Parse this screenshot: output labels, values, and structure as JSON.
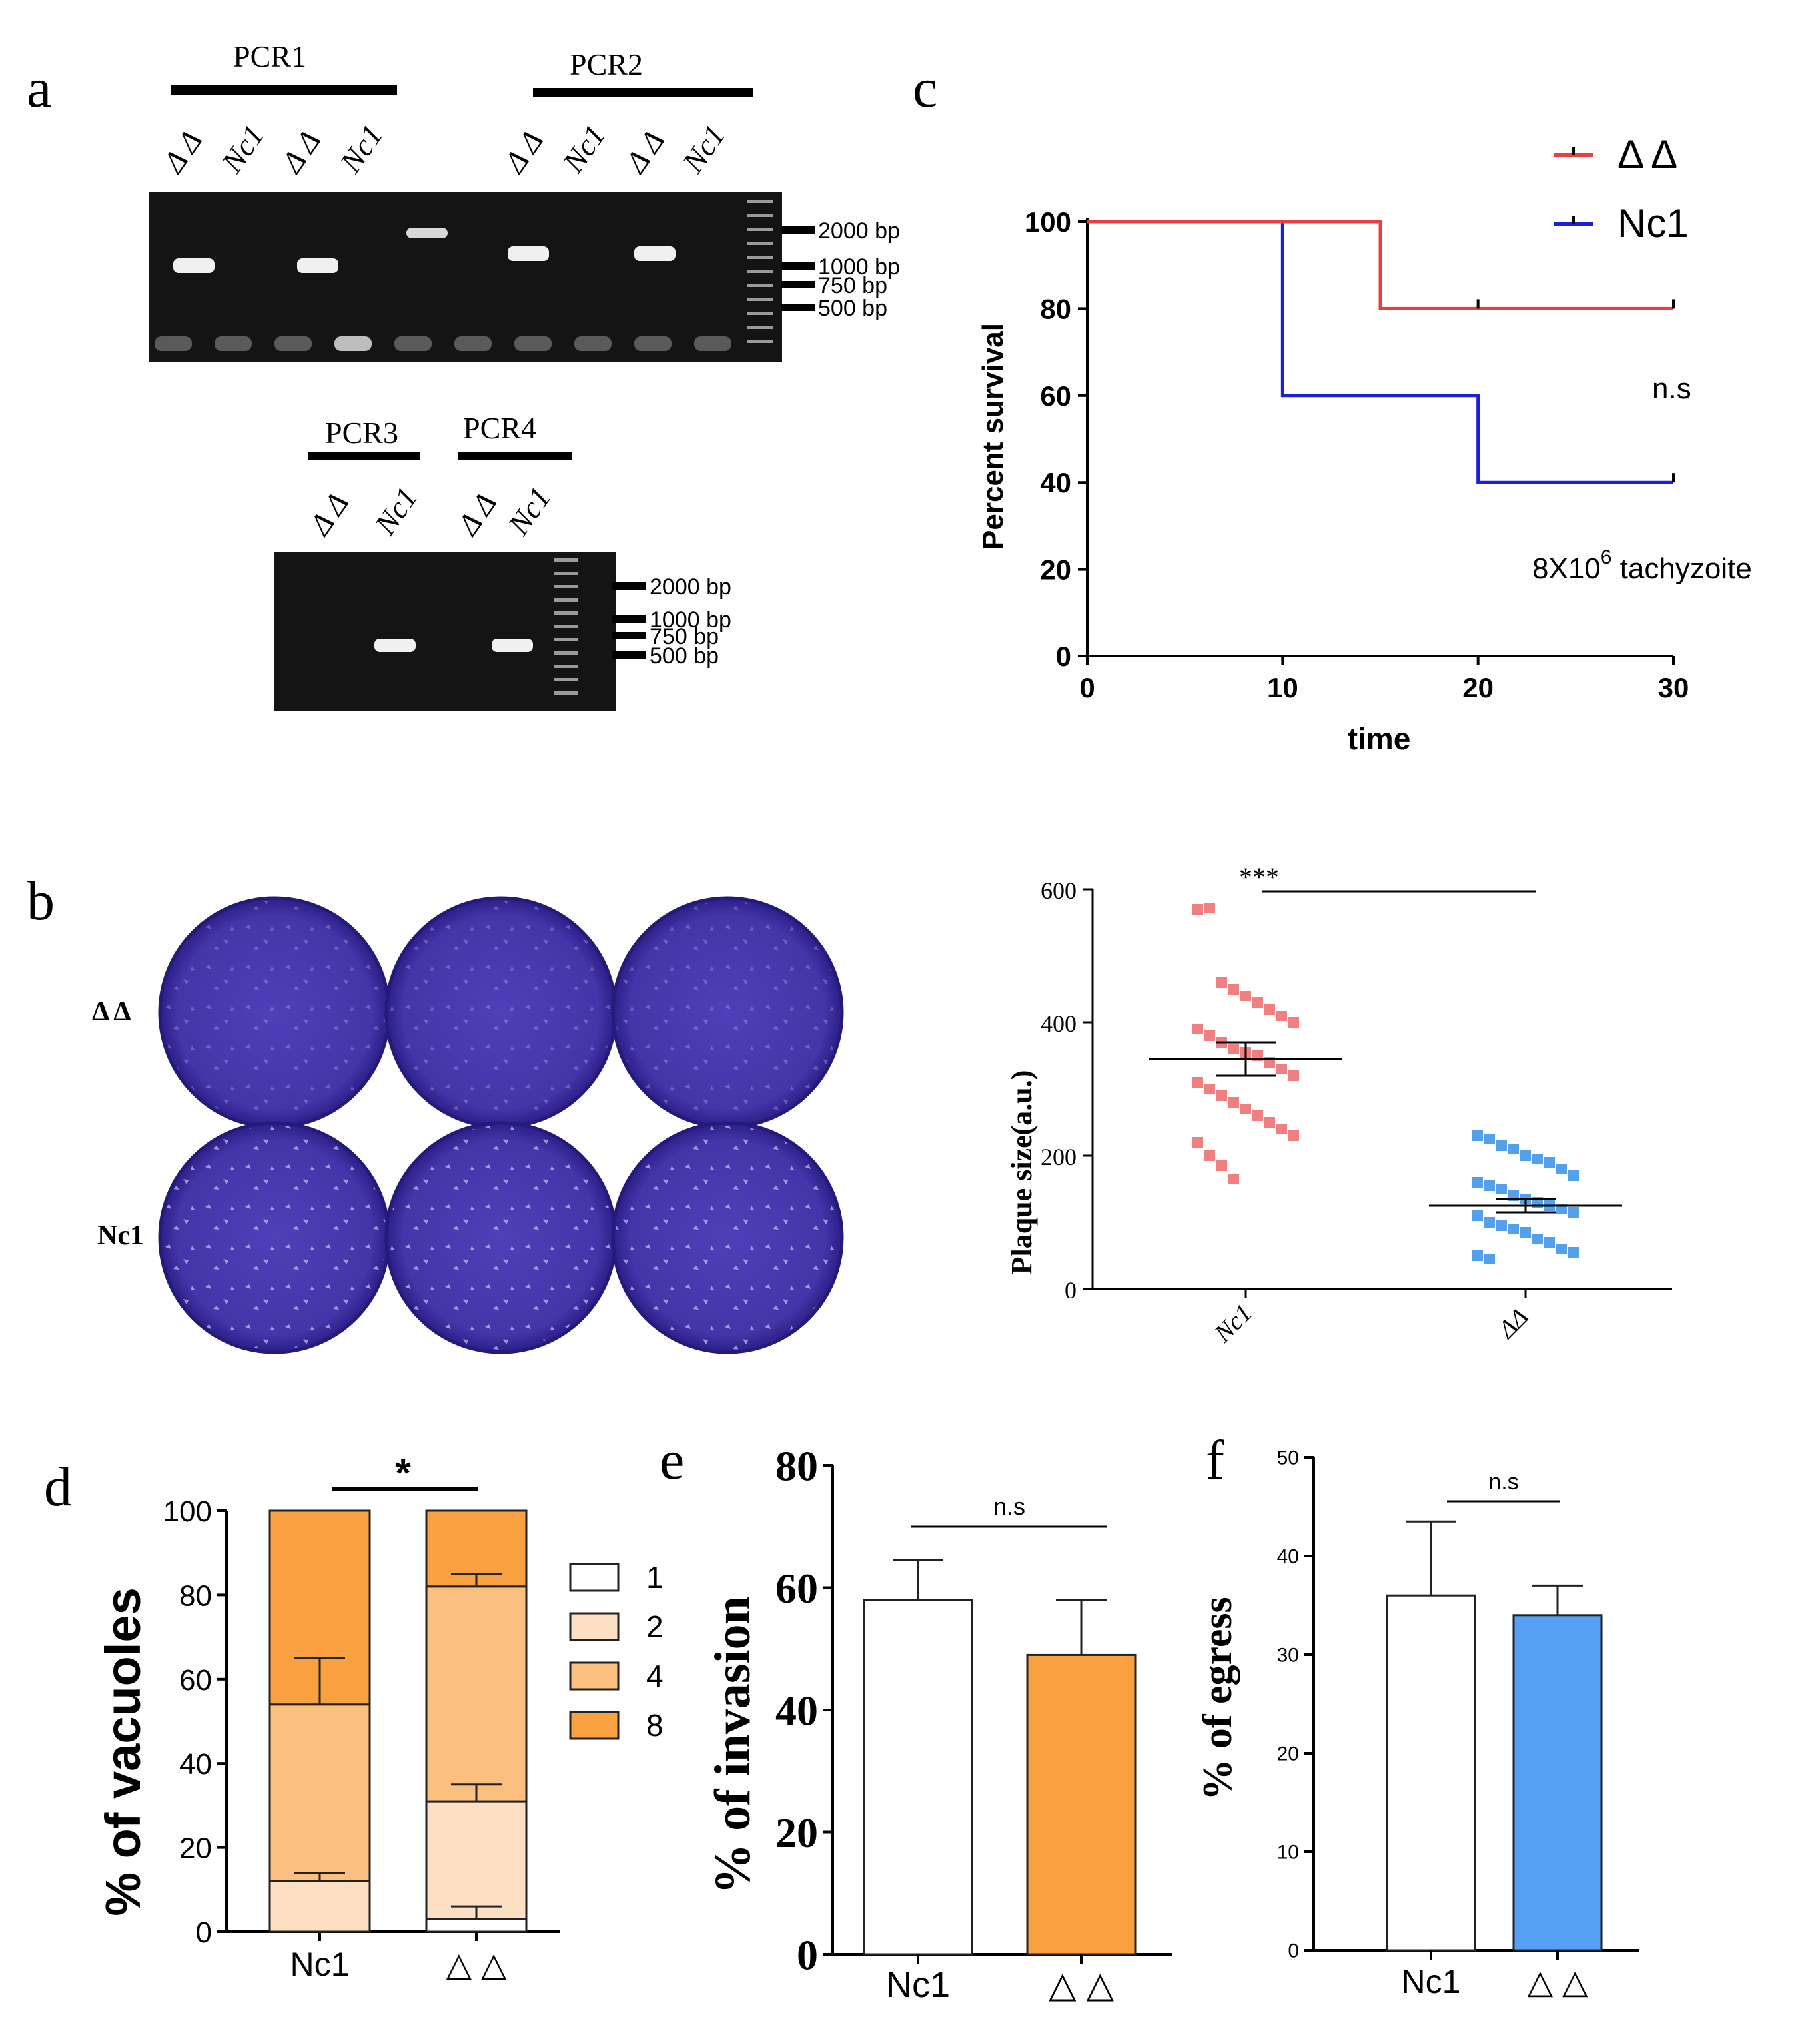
{
  "panel_labels": {
    "a": "a",
    "b": "b",
    "c": "c",
    "d": "d",
    "e": "e",
    "f": "f"
  },
  "panel_a": {
    "gel1": {
      "groups": [
        "PCR1",
        "PCR2"
      ],
      "lanes": [
        "Δ Δ",
        "Nc1",
        "Δ Δ",
        "Nc1",
        "Δ Δ",
        "Nc1",
        "Δ Δ",
        "Nc1"
      ],
      "markers": [
        "2000 bp",
        "1000 bp",
        "750 bp",
        "500 bp"
      ]
    },
    "gel2": {
      "groups": [
        "PCR3",
        "PCR4"
      ],
      "lanes": [
        "Δ Δ",
        "Nc1",
        "Δ Δ",
        "Nc1"
      ],
      "markers": [
        "2000 bp",
        "1000 bp",
        "750 bp",
        "500 bp"
      ]
    }
  },
  "panel_b": {
    "row_labels": [
      "Δ Δ",
      "Nc1"
    ],
    "plate_color": "#4a3aa8",
    "chart_data": {
      "type": "scatter",
      "ylabel": "Plaque size(a.u.)",
      "ylim": [
        0,
        600
      ],
      "yticks": [
        "0",
        "200",
        "400",
        "600"
      ],
      "categories": [
        "Nc1",
        "ΔΔ"
      ],
      "significance": "***",
      "series": [
        {
          "category": "Nc1",
          "color": "#f08080",
          "mean": 345,
          "sem": 25,
          "values": [
            570,
            572,
            460,
            450,
            440,
            430,
            420,
            410,
            400,
            390,
            380,
            370,
            360,
            355,
            350,
            340,
            330,
            320,
            310,
            300,
            290,
            280,
            270,
            260,
            250,
            240,
            230,
            220,
            200,
            185,
            165
          ]
        },
        {
          "category": "ΔΔ",
          "color": "#55a0ea",
          "mean": 125,
          "sem": 10,
          "values": [
            230,
            225,
            215,
            210,
            200,
            195,
            190,
            180,
            170,
            160,
            155,
            150,
            140,
            135,
            130,
            125,
            120,
            115,
            110,
            100,
            95,
            90,
            85,
            75,
            70,
            60,
            55,
            50,
            45
          ]
        }
      ]
    }
  },
  "panel_c": {
    "chart_data": {
      "type": "line",
      "xlabel": "time",
      "ylabel": "Percent survival",
      "xlim": [
        0,
        30
      ],
      "ylim": [
        0,
        100
      ],
      "xticks": [
        "0",
        "10",
        "20",
        "30"
      ],
      "yticks": [
        "0",
        "20",
        "40",
        "60",
        "80",
        "100"
      ],
      "annotation_ns": "n.s",
      "annotation_dose": "8X10",
      "annotation_dose_exp": "6",
      "annotation_dose_unit": " tachyzoite",
      "legend_position": "top-right",
      "series": [
        {
          "name": "Δ Δ",
          "color": "#e84040",
          "steps": [
            [
              0,
              100
            ],
            [
              15,
              100
            ],
            [
              15,
              80
            ],
            [
              30,
              80
            ]
          ],
          "censored": [
            [
              20,
              80
            ],
            [
              30,
              80
            ]
          ]
        },
        {
          "name": "Nc1",
          "color": "#1a22d8",
          "steps": [
            [
              0,
              100
            ],
            [
              10,
              100
            ],
            [
              10,
              60
            ],
            [
              20,
              60
            ],
            [
              20,
              40
            ],
            [
              30,
              40
            ]
          ],
          "censored": [
            [
              30,
              40
            ]
          ]
        }
      ]
    }
  },
  "panel_d": {
    "chart_data": {
      "type": "bar",
      "ylabel": "% of vacuoles",
      "ylim": [
        0,
        100
      ],
      "yticks": [
        "0",
        "20",
        "40",
        "60",
        "80",
        "100"
      ],
      "categories": [
        "Nc1",
        "△ △"
      ],
      "significance": "*",
      "legend": [
        "1",
        "2",
        "4",
        "8"
      ],
      "colors": {
        "1": "#ffffff",
        "2": "#fde0c4",
        "4": "#fbbf80",
        "8": "#f9a040"
      },
      "stacks": [
        {
          "category": "Nc1",
          "boundaries": [
            0,
            0,
            12,
            54,
            100
          ],
          "errors": [
            [
              12,
              14
            ],
            [
              54,
              65
            ]
          ]
        },
        {
          "category": "△ △",
          "boundaries": [
            0,
            3,
            31,
            82,
            100
          ],
          "errors": [
            [
              3,
              6
            ],
            [
              31,
              35
            ],
            [
              82,
              85
            ]
          ]
        }
      ]
    }
  },
  "panel_e": {
    "chart_data": {
      "type": "bar",
      "ylabel": "% of invasion",
      "ylim": [
        0,
        80
      ],
      "yticks": [
        "0",
        "20",
        "40",
        "60",
        "80"
      ],
      "categories": [
        "Nc1",
        "△ △"
      ],
      "values": [
        58,
        49
      ],
      "errors": [
        6.5,
        9
      ],
      "colors": [
        "#ffffff",
        "#f9a040"
      ],
      "significance": "n.s"
    }
  },
  "panel_f": {
    "chart_data": {
      "type": "bar",
      "ylabel": "% of egress",
      "ylim": [
        0,
        50
      ],
      "yticks": [
        "0",
        "10",
        "20",
        "30",
        "40",
        "50"
      ],
      "categories": [
        "Nc1",
        "△ △"
      ],
      "values": [
        36,
        34
      ],
      "errors": [
        7.5,
        3
      ],
      "colors": [
        "#ffffff",
        "#55a0f5"
      ],
      "significance": "n.s"
    }
  }
}
